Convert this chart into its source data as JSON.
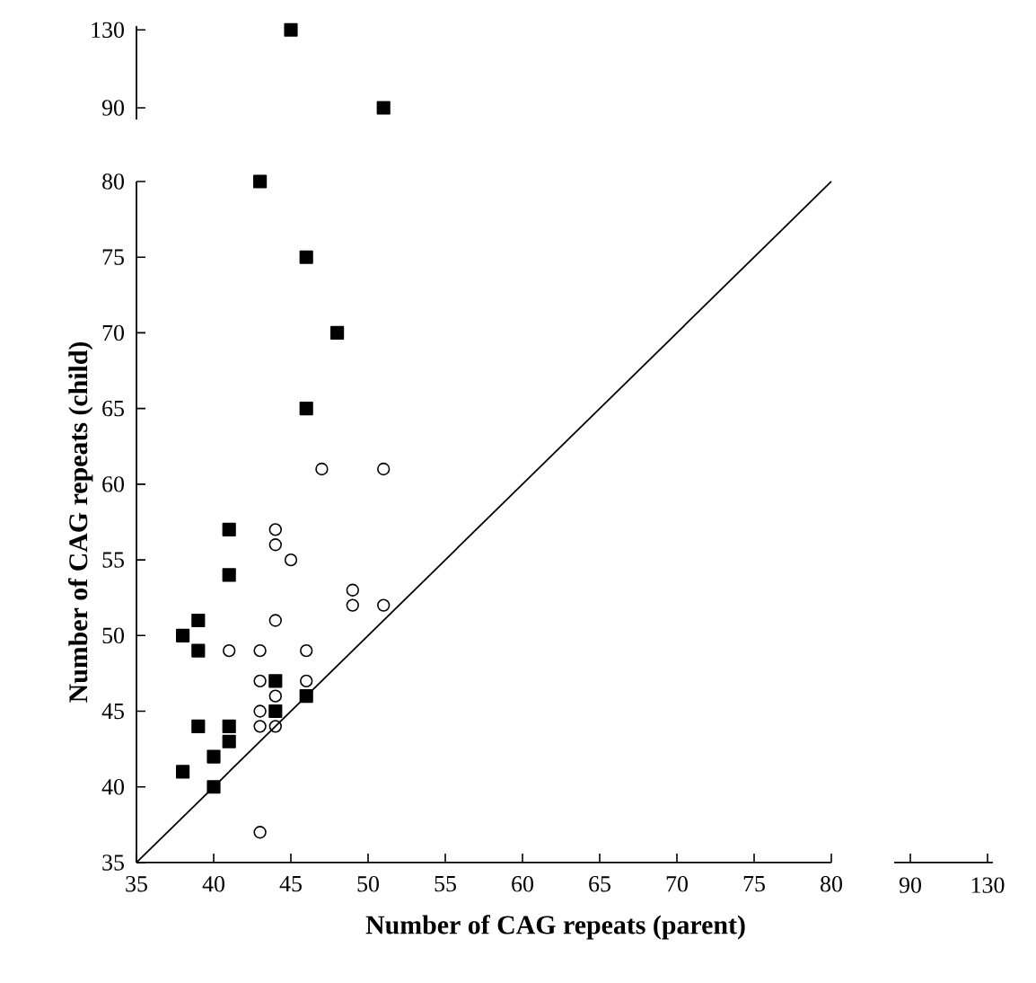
{
  "chart_data": [
    {
      "type": "scatter",
      "xlabel": "Number of CAG repeats (parent)",
      "ylabel": "Number of CAG repeats (child)",
      "xlim": [
        35,
        80
      ],
      "ylim": [
        35,
        80
      ],
      "xticks": [
        35,
        40,
        45,
        50,
        55,
        60,
        65,
        70,
        75,
        80
      ],
      "yticks": [
        35,
        40,
        45,
        50,
        55,
        60,
        65,
        70,
        75,
        80
      ],
      "grid": false,
      "series": [
        {
          "color": "#000000",
          "marker": "square",
          "x": [
            41,
            41,
            39,
            38,
            39,
            44,
            44,
            46,
            39,
            41,
            41,
            40,
            38,
            40,
            43,
            46,
            48,
            46
          ],
          "values": [
            57,
            54,
            51,
            50,
            49,
            47,
            45,
            46,
            44,
            44,
            43,
            42,
            41,
            40,
            80,
            75,
            70,
            65
          ]
        },
        {
          "color": "#000000",
          "marker": "circle",
          "x": [
            47,
            51,
            44,
            44,
            45,
            49,
            49,
            51,
            44,
            41,
            43,
            46,
            43,
            46,
            44,
            43,
            43,
            44,
            43
          ],
          "values": [
            61,
            61,
            57,
            56,
            55,
            53,
            52,
            52,
            51,
            49,
            49,
            49,
            47,
            47,
            46,
            45,
            44,
            44,
            37
          ]
        },
        {
          "type": "line",
          "color": "#000000",
          "marker": "none",
          "x": [
            35,
            80
          ],
          "values": [
            35,
            80
          ]
        }
      ]
    },
    {
      "type": "scatter",
      "xlim": [
        35,
        80
      ],
      "ylim": [
        84,
        132
      ],
      "yticks": [
        90,
        130
      ],
      "tick_labels": "y",
      "series": [
        {
          "color": "#000000",
          "marker": "square",
          "x": [
            45,
            51
          ],
          "values": [
            130,
            90
          ]
        }
      ]
    },
    {
      "type": "other",
      "annotations": [
        "90",
        "130"
      ]
    }
  ]
}
